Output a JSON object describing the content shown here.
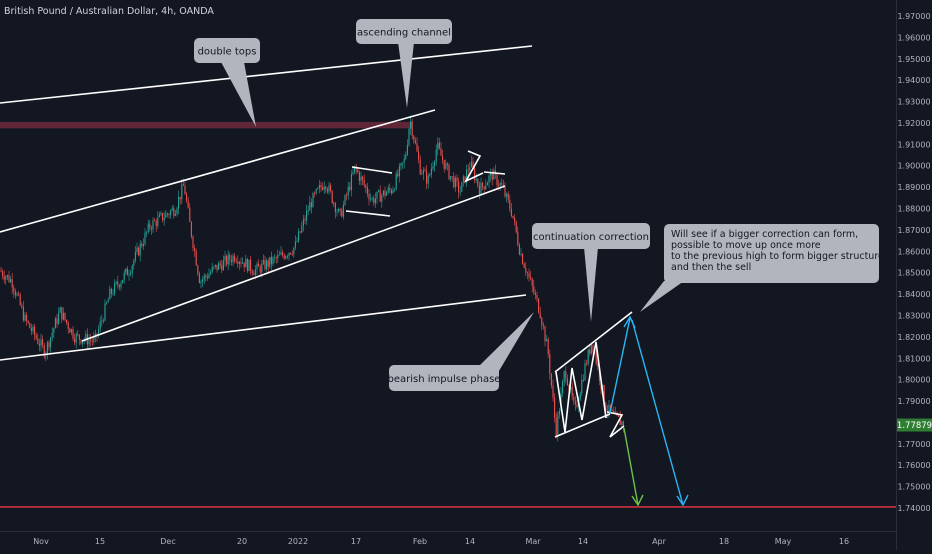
{
  "header": {
    "symbol_title": "British Pound / Australian Dollar, 4h, OANDA"
  },
  "chart_data": {
    "type": "candlestick",
    "symbol": "GBPAUD",
    "timeframe": "4h",
    "broker": "OANDA",
    "x_labels": [
      "Nov",
      "15",
      "Dec",
      "20",
      "2022",
      "17",
      "Feb",
      "14",
      "Mar",
      "14",
      "Apr",
      "18",
      "May",
      "16"
    ],
    "y_ticks": [
      "1.97000",
      "1.96000",
      "1.95000",
      "1.94000",
      "1.93000",
      "1.92000",
      "1.91000",
      "1.90000",
      "1.89000",
      "1.88000",
      "1.87000",
      "1.86000",
      "1.85000",
      "1.84000",
      "1.83000",
      "1.82000",
      "1.81000",
      "1.80000",
      "1.79000",
      "1.78000",
      "1.77000",
      "1.76000",
      "1.75000",
      "1.74000"
    ],
    "ylim": [
      1.7355,
      1.9745
    ],
    "grid": false,
    "last_price": "1.77879",
    "last_price_value": 1.77879,
    "support_level": 1.7405,
    "resistance_zone": [
      1.9175,
      1.9205
    ],
    "path_anchors": [
      [
        0,
        1.851
      ],
      [
        12,
        1.846
      ],
      [
        25,
        1.828
      ],
      [
        45,
        1.813
      ],
      [
        60,
        1.832
      ],
      [
        75,
        1.82
      ],
      [
        95,
        1.818
      ],
      [
        110,
        1.84
      ],
      [
        130,
        1.852
      ],
      [
        150,
        1.872
      ],
      [
        175,
        1.88
      ],
      [
        184,
        1.891
      ],
      [
        190,
        1.872
      ],
      [
        200,
        1.846
      ],
      [
        215,
        1.852
      ],
      [
        235,
        1.858
      ],
      [
        255,
        1.851
      ],
      [
        275,
        1.856
      ],
      [
        295,
        1.862
      ],
      [
        310,
        1.882
      ],
      [
        325,
        1.893
      ],
      [
        340,
        1.876
      ],
      [
        355,
        1.899
      ],
      [
        372,
        1.884
      ],
      [
        392,
        1.889
      ],
      [
        405,
        1.903
      ],
      [
        410,
        1.922
      ],
      [
        420,
        1.899
      ],
      [
        428,
        1.893
      ],
      [
        437,
        1.909
      ],
      [
        448,
        1.897
      ],
      [
        460,
        1.888
      ],
      [
        470,
        1.901
      ],
      [
        480,
        1.889
      ],
      [
        492,
        1.896
      ],
      [
        502,
        1.89
      ],
      [
        512,
        1.878
      ],
      [
        520,
        1.86
      ],
      [
        530,
        1.846
      ],
      [
        540,
        1.832
      ],
      [
        548,
        1.813
      ],
      [
        556,
        1.776
      ],
      [
        565,
        1.805
      ],
      [
        575,
        1.785
      ],
      [
        585,
        1.806
      ],
      [
        592,
        1.818
      ],
      [
        598,
        1.805
      ],
      [
        606,
        1.787
      ],
      [
        615,
        1.782
      ],
      [
        625,
        1.779
      ]
    ],
    "annotations": [
      {
        "text": "double tops"
      },
      {
        "text": "ascending channel"
      },
      {
        "text": "continuation correction"
      },
      {
        "text": "bearish impulse phase"
      },
      {
        "text": "Will see if a bigger correction can form,\npossible to move up once more\nto the previous high to form bigger structure\nand then the sell"
      }
    ],
    "colors": {
      "background": "#131722",
      "up": "#26a69a",
      "down": "#ef5350",
      "support_line": "#f23645",
      "resistance_zone": "#7a2c3f",
      "last_price_bg": "#2e7d32",
      "projection_blue": "#29b6f6",
      "projection_green": "#6cc24a",
      "drawings": "#ffffff",
      "callout_bg": "#b2b5be"
    }
  }
}
